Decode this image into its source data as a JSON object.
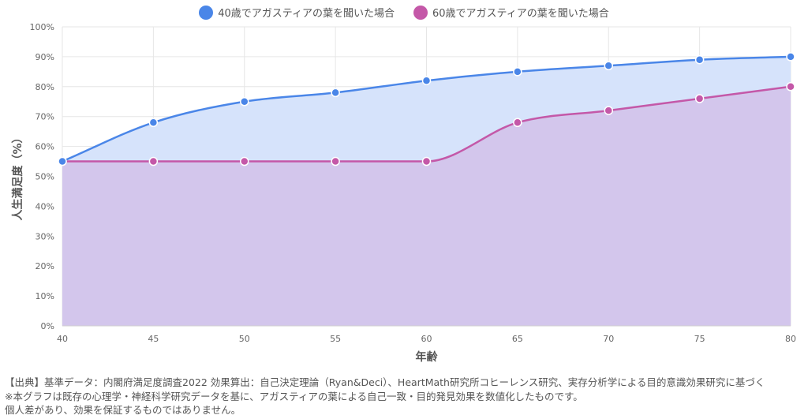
{
  "colors": {
    "series1": "#4a86e8",
    "series2": "#c458a8",
    "fill1": "#d6e3fb",
    "fill2": "#d3c6ec",
    "grid": "#e6e6e6"
  },
  "chart_data": {
    "type": "area",
    "x": [
      40,
      45,
      50,
      55,
      60,
      65,
      70,
      75,
      80
    ],
    "series": [
      {
        "name": "40歳でアガスティアの葉を聞いた場合",
        "values": [
          55,
          68,
          75,
          78,
          82,
          85,
          87,
          89,
          90
        ]
      },
      {
        "name": "60歳でアガスティアの葉を聞いた場合",
        "values": [
          55,
          55,
          55,
          55,
          55,
          68,
          72,
          76,
          80
        ]
      }
    ],
    "xlabel": "年齢",
    "ylabel": "人生満足度（%）",
    "ylim": [
      0,
      100
    ],
    "y_ticks": [
      "0%",
      "10%",
      "20%",
      "30%",
      "40%",
      "50%",
      "60%",
      "70%",
      "80%",
      "90%",
      "100%"
    ],
    "x_ticks": [
      "40",
      "45",
      "50",
      "55",
      "60",
      "65",
      "70",
      "75",
      "80"
    ],
    "grid": true,
    "legend_position": "top-center"
  },
  "footnote": {
    "line1": "【出典】基準データ：内閣府満足度調査2022 効果算出：自己決定理論（Ryan&Deci）、HeartMath研究所コヒーレンス研究、実存分析学による目的意識効果研究に基づく",
    "line2": "※本グラフは既存の心理学・神経科学研究データを基に、アガスティアの葉による自己一致・目的発見効果を数値化したものです。",
    "line3": "個人差があり、効果を保証するものではありません。"
  }
}
